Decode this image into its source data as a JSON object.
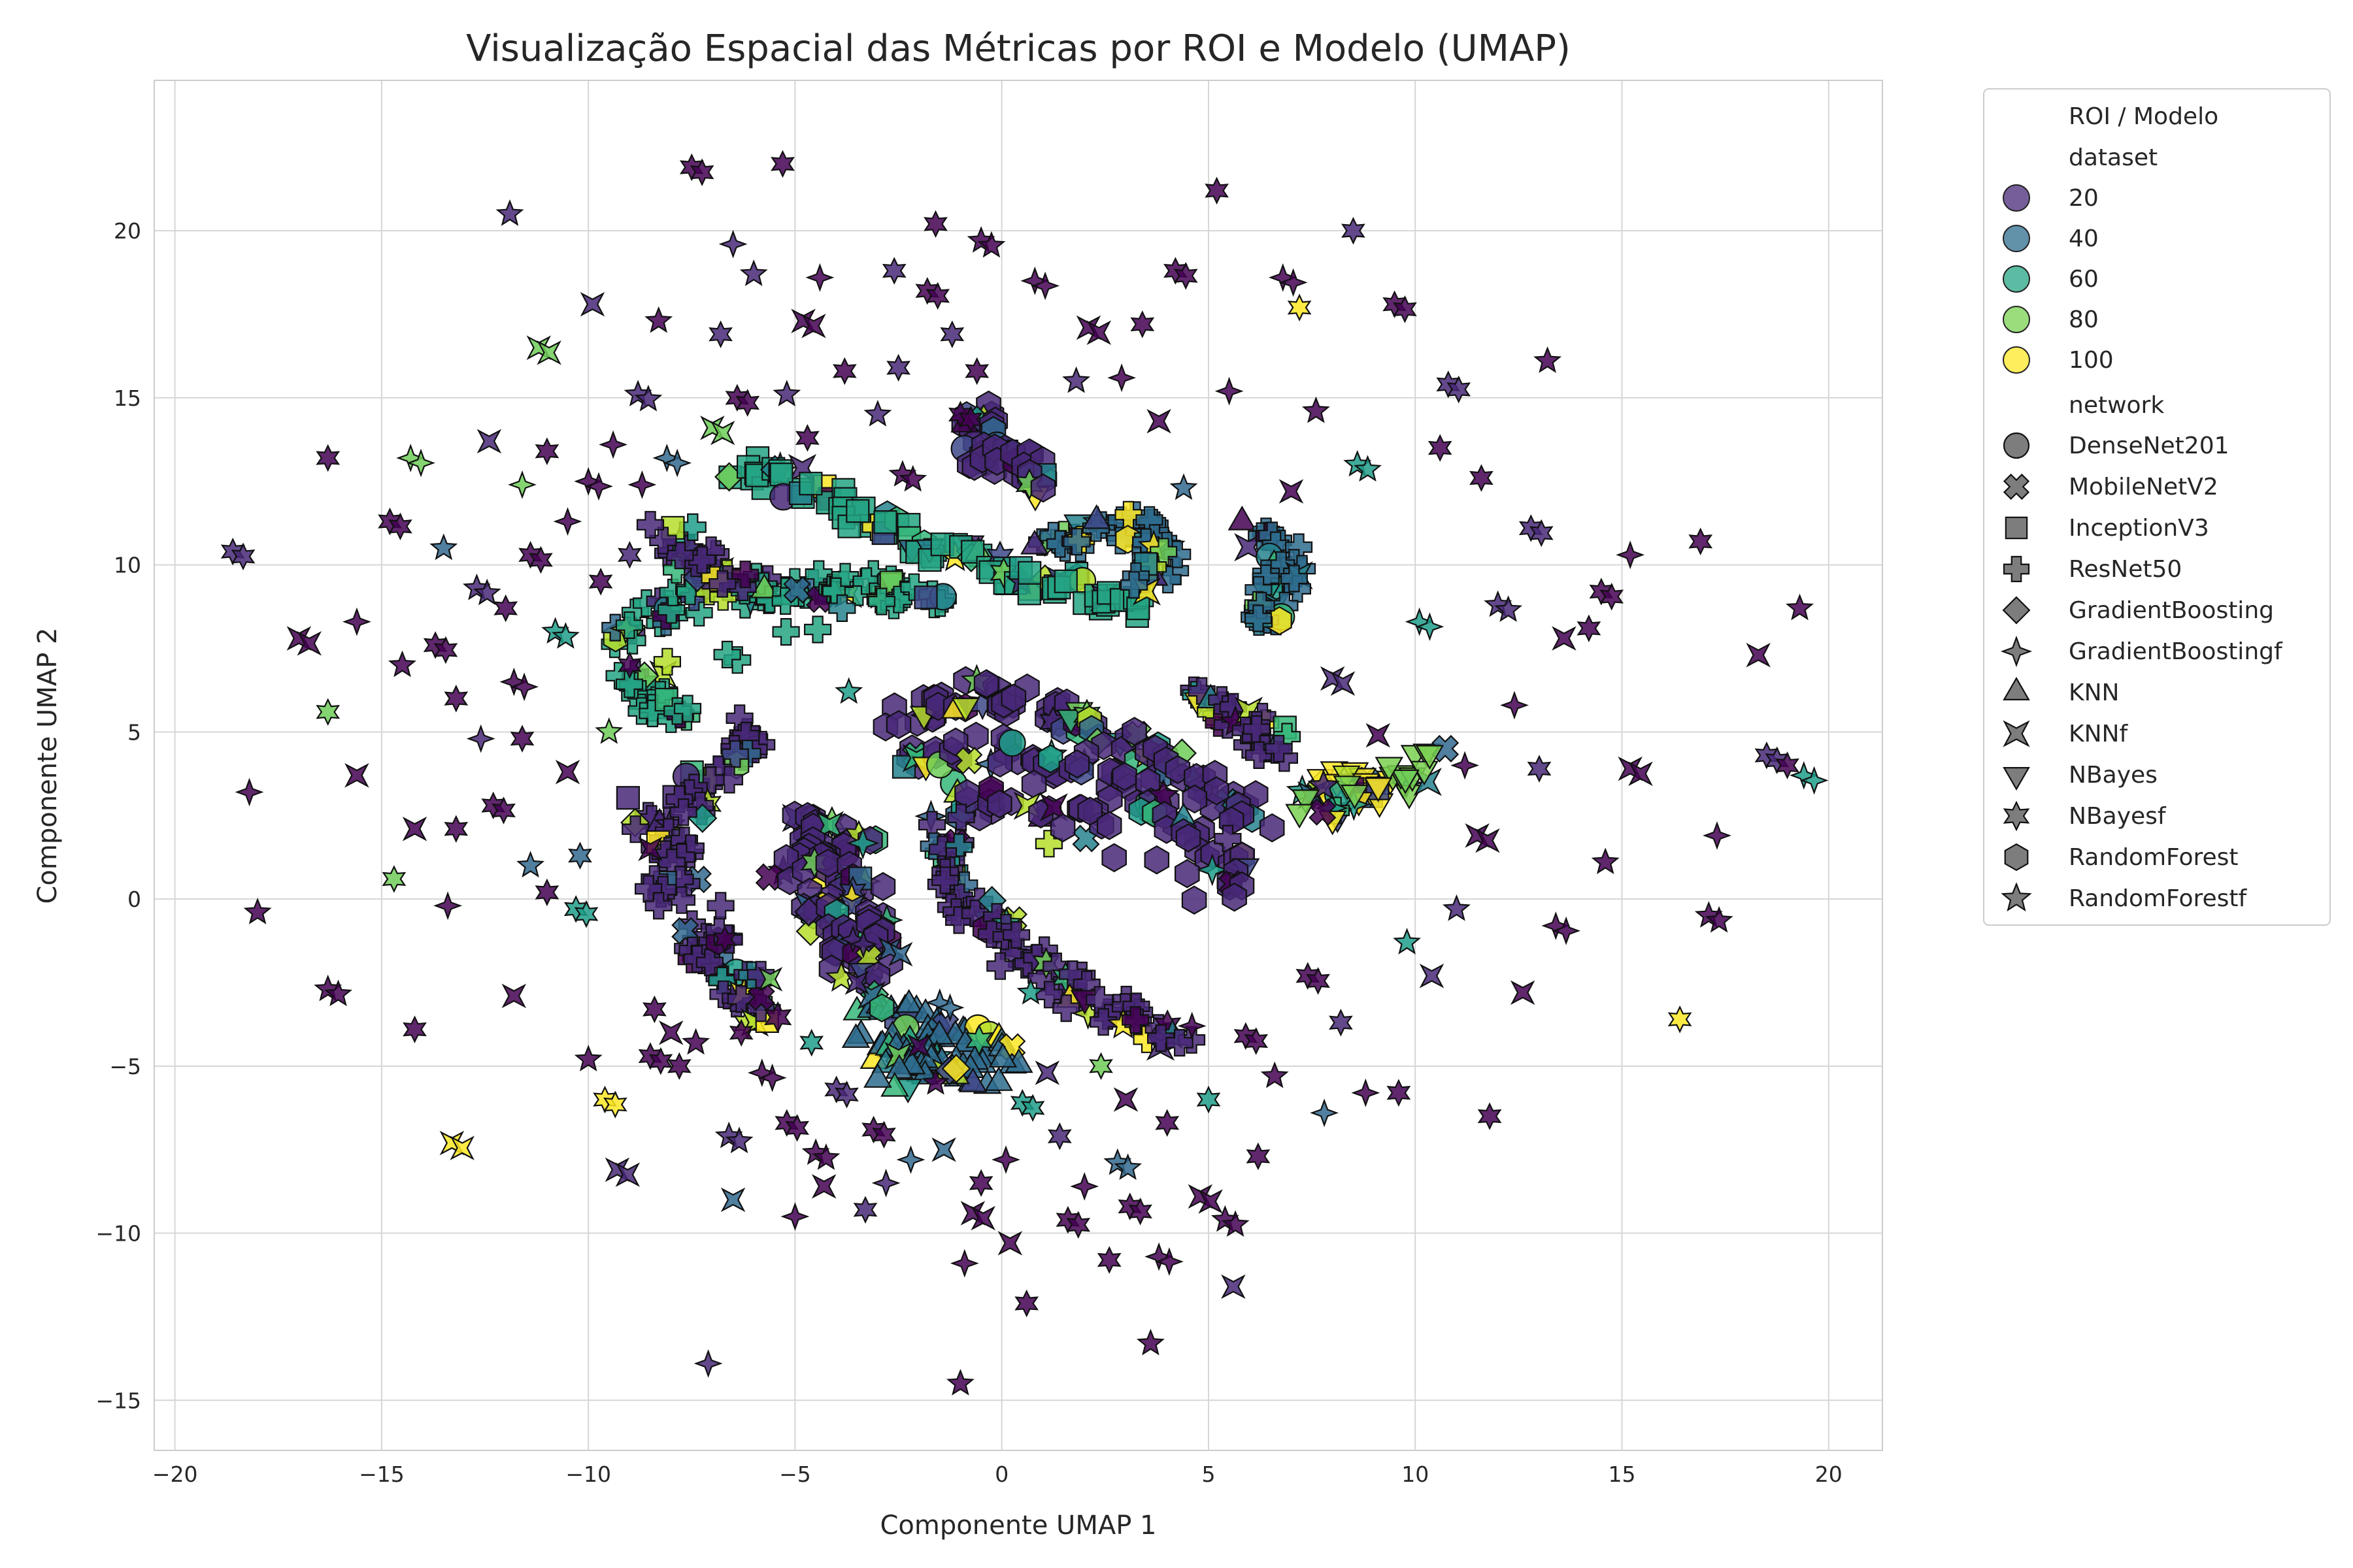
{
  "chart_data": {
    "type": "scatter",
    "title": "Visualização Espacial das Métricas por ROI e Modelo (UMAP)",
    "xlabel": "Componente UMAP 1",
    "ylabel": "Componente UMAP 2",
    "xlim": [
      -20.5,
      21.3
    ],
    "ylim": [
      -16.5,
      24.5
    ],
    "xticks": [
      -20,
      -15,
      -10,
      -5,
      0,
      5,
      10,
      15,
      20
    ],
    "yticks": [
      -15,
      -10,
      -5,
      0,
      5,
      10,
      15,
      20
    ],
    "xtick_labels": [
      "−20",
      "−15",
      "−10",
      "−5",
      "0",
      "5",
      "10",
      "15",
      "20"
    ],
    "ytick_labels": [
      "−15",
      "−10",
      "−5",
      "0",
      "5",
      "10",
      "15",
      "20"
    ],
    "grid": true,
    "legend": {
      "title": "ROI / Modelo",
      "placement": "outside-right",
      "hue_title": "dataset",
      "hue_entries": [
        {
          "label": "20",
          "color": "#482878"
        },
        {
          "label": "40",
          "color": "#2e6c8e"
        },
        {
          "label": "60",
          "color": "#25a584"
        },
        {
          "label": "80",
          "color": "#7ad151"
        },
        {
          "label": "100",
          "color": "#fde725"
        }
      ],
      "style_title": "network",
      "style_entries": [
        {
          "label": "DenseNet201",
          "marker": "circle"
        },
        {
          "label": "MobileNetV2",
          "marker": "x"
        },
        {
          "label": "InceptionV3",
          "marker": "square"
        },
        {
          "label": "ResNet50",
          "marker": "plus"
        },
        {
          "label": "GradientBoosting",
          "marker": "diamond"
        },
        {
          "label": "GradientBoostingf",
          "marker": "star4"
        },
        {
          "label": "KNN",
          "marker": "triangle-up"
        },
        {
          "label": "KNNf",
          "marker": "bowtie"
        },
        {
          "label": "NBayes",
          "marker": "triangle-down"
        },
        {
          "label": "NBayesf",
          "marker": "star6"
        },
        {
          "label": "RandomForest",
          "marker": "hexagon"
        },
        {
          "label": "RandomForestf",
          "marker": "star5"
        }
      ]
    },
    "colormap": [
      "#440154",
      "#482878",
      "#3e4989",
      "#31688e",
      "#26828e",
      "#1f9e89",
      "#35b779",
      "#6ece58",
      "#b5de2b",
      "#fde725"
    ],
    "clusters": [
      {
        "points": [
          [
            -9.5,
            7.8
          ],
          [
            -8.5,
            8.5
          ],
          [
            -7.5,
            9.0
          ],
          [
            -6.5,
            9.2
          ],
          [
            -5.5,
            9.2
          ],
          [
            -4.5,
            9.3
          ],
          [
            -3.5,
            9.3
          ],
          [
            -2.5,
            9.2
          ],
          [
            -1.5,
            9.0
          ],
          [
            -9.3,
            6.6
          ],
          [
            -8.4,
            6.0
          ],
          [
            -7.6,
            5.7
          ]
        ],
        "marker": "plus",
        "hue": 60
      },
      {
        "points": [
          [
            -6.5,
            13.0
          ],
          [
            -5.5,
            12.6
          ],
          [
            -4.5,
            12.2
          ],
          [
            -3.5,
            11.6
          ],
          [
            -2.5,
            11.0
          ],
          [
            -1.5,
            10.4
          ],
          [
            -0.5,
            10.0
          ],
          [
            0.5,
            9.6
          ],
          [
            1.5,
            9.4
          ],
          [
            2.5,
            9.0
          ],
          [
            3.3,
            8.7
          ]
        ],
        "marker": "square",
        "hue": 60
      },
      {
        "points": [
          [
            1.0,
            10.6
          ],
          [
            2.0,
            11.1
          ],
          [
            3.0,
            11.2
          ],
          [
            3.8,
            10.9
          ],
          [
            3.9,
            10.1
          ],
          [
            3.2,
            9.4
          ]
        ],
        "marker": "plus",
        "hue": 40
      },
      {
        "points": [
          [
            6.2,
            11.0
          ],
          [
            6.8,
            10.3
          ],
          [
            6.9,
            9.5
          ],
          [
            6.6,
            8.8
          ],
          [
            6.2,
            8.4
          ]
        ],
        "marker": "plus",
        "hue": 40
      },
      {
        "points": [
          [
            -0.5,
            14.6
          ],
          [
            -0.6,
            13.8
          ],
          [
            -0.3,
            13.2
          ],
          [
            0.5,
            13.0
          ],
          [
            1.0,
            12.3
          ]
        ],
        "marker": "hexagon",
        "hue": 20
      },
      {
        "points": [
          [
            -2.5,
            5.5
          ],
          [
            -1.5,
            6.0
          ],
          [
            -0.5,
            6.1
          ],
          [
            0.5,
            5.9
          ],
          [
            1.5,
            5.5
          ],
          [
            2.5,
            5.0
          ],
          [
            3.5,
            4.4
          ],
          [
            4.5,
            3.8
          ],
          [
            5.5,
            3.0
          ],
          [
            6.2,
            2.3
          ],
          [
            -2.6,
            4.0
          ],
          [
            -1.2,
            4.5
          ],
          [
            0.4,
            4.4
          ],
          [
            1.9,
            3.9
          ],
          [
            3.2,
            3.2
          ],
          [
            4.5,
            2.3
          ],
          [
            5.4,
            1.2
          ],
          [
            5.6,
            0.0
          ],
          [
            -1.5,
            2.9
          ],
          [
            0.5,
            3.0
          ],
          [
            2.6,
            2.2
          ]
        ],
        "marker": "hexagon",
        "hue": 20
      },
      {
        "points": [
          [
            -1.3,
            2.0
          ],
          [
            -1.4,
            1.0
          ],
          [
            -0.9,
            0.0
          ],
          [
            -0.2,
            -0.8
          ],
          [
            0.4,
            -1.6
          ],
          [
            1.3,
            -2.4
          ],
          [
            2.3,
            -3.1
          ],
          [
            3.3,
            -3.8
          ],
          [
            4.3,
            -4.3
          ]
        ],
        "marker": "plus",
        "hue": 20
      },
      {
        "points": [
          [
            -5.0,
            2.3
          ],
          [
            -4.2,
            2.0
          ],
          [
            -3.4,
            1.6
          ],
          [
            -5.3,
            1.0
          ],
          [
            -4.3,
            0.8
          ],
          [
            -3.3,
            0.4
          ],
          [
            -4.8,
            -0.5
          ],
          [
            -3.8,
            -0.7
          ],
          [
            -2.8,
            -1.0
          ],
          [
            -4.0,
            -2.0
          ],
          [
            -3.0,
            -2.3
          ]
        ],
        "marker": "hexagon",
        "hue": 20
      },
      {
        "points": [
          [
            -3.2,
            -3.0
          ],
          [
            -2.4,
            -3.5
          ],
          [
            -1.6,
            -3.8
          ],
          [
            -0.8,
            -4.3
          ],
          [
            0.0,
            -4.6
          ],
          [
            -3.3,
            -4.4
          ],
          [
            -2.4,
            -4.7
          ],
          [
            -1.4,
            -5.0
          ],
          [
            -0.5,
            -5.2
          ],
          [
            -3.0,
            -5.4
          ]
        ],
        "marker": "triangle-up",
        "hue": 40
      },
      {
        "points": [
          [
            -7.5,
            -1.0
          ],
          [
            -7.0,
            -2.0
          ],
          [
            -6.3,
            -2.8
          ],
          [
            -5.6,
            -3.5
          ],
          [
            -6.8,
            -0.2
          ]
        ],
        "marker": "plus",
        "hue": 20
      },
      {
        "points": [
          [
            -8.8,
            2.8
          ],
          [
            -8.2,
            1.8
          ],
          [
            -7.7,
            0.8
          ],
          [
            -8.3,
            -0.2
          ]
        ],
        "marker": "plus",
        "hue": 20
      },
      {
        "points": [
          [
            -5.8,
            5.2
          ],
          [
            -6.5,
            4.3
          ],
          [
            -7.2,
            3.4
          ],
          [
            -7.7,
            2.6
          ]
        ],
        "marker": "plus",
        "hue": 20
      },
      {
        "points": [
          [
            -8.0,
            10.5
          ],
          [
            -7.2,
            10.0
          ],
          [
            -6.5,
            9.6
          ],
          [
            -8.5,
            11.2
          ]
        ],
        "marker": "plus",
        "hue": 20
      },
      {
        "points": [
          [
            4.8,
            6.0
          ],
          [
            5.6,
            5.6
          ],
          [
            6.2,
            5.0
          ],
          [
            6.7,
            4.5
          ]
        ],
        "marker": "plus",
        "hue": 20
      },
      {
        "points": [
          [
            7.4,
            3.4
          ],
          [
            8.4,
            3.5
          ],
          [
            9.0,
            3.3
          ],
          [
            8.0,
            2.4
          ]
        ],
        "marker": "triangle-down",
        "hue": 100
      },
      {
        "points": [
          [
            9.5,
            3.3
          ],
          [
            10.3,
            4.2
          ],
          [
            7.2,
            2.6
          ]
        ],
        "marker": "triangle-down",
        "hue": 80
      }
    ],
    "scattered_points": [
      [
        -18.6,
        10.4
      ],
      [
        -18.0,
        -0.4
      ],
      [
        -18.2,
        3.2
      ],
      [
        -17.0,
        7.8
      ],
      [
        -16.3,
        13.2
      ],
      [
        -16.3,
        5.6
      ],
      [
        -16.3,
        -2.7
      ],
      [
        -15.6,
        8.3
      ],
      [
        -15.6,
        3.7
      ],
      [
        -14.8,
        11.3
      ],
      [
        -14.7,
        0.6
      ],
      [
        -14.5,
        7.0
      ],
      [
        -14.3,
        13.2
      ],
      [
        -14.2,
        2.1
      ],
      [
        -14.2,
        -3.9
      ],
      [
        -13.7,
        7.6
      ],
      [
        -13.5,
        10.5
      ],
      [
        -13.4,
        -0.2
      ],
      [
        -13.3,
        -7.3
      ],
      [
        -13.2,
        6.0
      ],
      [
        -13.2,
        2.1
      ],
      [
        -12.7,
        9.3
      ],
      [
        -12.6,
        4.8
      ],
      [
        -12.4,
        13.7
      ],
      [
        -12.3,
        2.8
      ],
      [
        -12.0,
        8.7
      ],
      [
        -11.9,
        20.5
      ],
      [
        -11.8,
        6.5
      ],
      [
        -11.8,
        -2.9
      ],
      [
        -11.6,
        4.8
      ],
      [
        -11.4,
        10.3
      ],
      [
        -11.4,
        1.0
      ],
      [
        -11.6,
        12.4
      ],
      [
        -11.2,
        16.5
      ],
      [
        -11.0,
        0.2
      ],
      [
        -11.0,
        13.4
      ],
      [
        -10.8,
        8.0
      ],
      [
        -10.5,
        11.3
      ],
      [
        -10.5,
        3.8
      ],
      [
        -10.3,
        -0.3
      ],
      [
        -10.2,
        1.3
      ],
      [
        -10.0,
        -4.8
      ],
      [
        -10.0,
        12.5
      ],
      [
        -9.9,
        17.8
      ],
      [
        -9.7,
        9.5
      ],
      [
        -9.6,
        -6.0
      ],
      [
        -9.5,
        5.0
      ],
      [
        -9.4,
        13.6
      ],
      [
        -9.3,
        -8.1
      ],
      [
        -9.0,
        10.3
      ],
      [
        -9.0,
        7.0
      ],
      [
        -8.8,
        15.1
      ],
      [
        -8.7,
        12.4
      ],
      [
        -8.5,
        1.5
      ],
      [
        -8.5,
        -4.7
      ],
      [
        -8.4,
        -3.3
      ],
      [
        -8.3,
        17.3
      ],
      [
        -8.1,
        13.2
      ],
      [
        -8.0,
        -4.0
      ],
      [
        -7.8,
        -5.0
      ],
      [
        -7.5,
        21.9
      ],
      [
        -7.4,
        -4.3
      ],
      [
        -7.1,
        -13.9
      ],
      [
        -7.0,
        14.1
      ],
      [
        -6.8,
        16.9
      ],
      [
        -6.7,
        -1.2
      ],
      [
        -6.6,
        -7.1
      ],
      [
        -6.5,
        19.6
      ],
      [
        -6.5,
        -9.0
      ],
      [
        -6.4,
        15.0
      ],
      [
        -6.3,
        -4.0
      ],
      [
        -6.0,
        18.7
      ],
      [
        -5.8,
        -5.2
      ],
      [
        -5.6,
        -2.4
      ],
      [
        -5.3,
        22.0
      ],
      [
        -5.2,
        -6.7
      ],
      [
        -5.2,
        15.1
      ],
      [
        -5.0,
        -9.5
      ],
      [
        -4.8,
        17.3
      ],
      [
        -4.7,
        13.8
      ],
      [
        -4.6,
        -4.3
      ],
      [
        -4.5,
        -7.6
      ],
      [
        -4.4,
        18.6
      ],
      [
        -4.3,
        -8.6
      ],
      [
        -4.0,
        -5.7
      ],
      [
        -3.8,
        15.8
      ],
      [
        -3.7,
        6.2
      ],
      [
        -3.6,
        -1.2
      ],
      [
        -3.5,
        -2.5
      ],
      [
        -3.3,
        -9.3
      ],
      [
        -3.1,
        -6.9
      ],
      [
        -3.0,
        14.5
      ],
      [
        -2.8,
        -8.5
      ],
      [
        -2.7,
        -1.5
      ],
      [
        -2.6,
        18.8
      ],
      [
        -2.5,
        15.9
      ],
      [
        -2.4,
        12.7
      ],
      [
        -2.2,
        -7.8
      ],
      [
        -2.0,
        -4.4
      ],
      [
        -1.8,
        18.2
      ],
      [
        -1.6,
        20.2
      ],
      [
        -1.6,
        -5.5
      ],
      [
        -1.5,
        -3.1
      ],
      [
        -1.4,
        -7.5
      ],
      [
        -1.2,
        16.9
      ],
      [
        -1.0,
        14.5
      ],
      [
        -1.0,
        -14.5
      ],
      [
        -0.9,
        -10.9
      ],
      [
        -0.7,
        -9.4
      ],
      [
        -0.5,
        -8.5
      ],
      [
        -0.6,
        15.8
      ],
      [
        -0.5,
        19.7
      ],
      [
        0.1,
        -7.8
      ],
      [
        0.2,
        -10.3
      ],
      [
        0.5,
        -6.1
      ],
      [
        0.6,
        -12.1
      ],
      [
        0.7,
        -2.8
      ],
      [
        0.8,
        18.5
      ],
      [
        1.1,
        -5.2
      ],
      [
        1.4,
        -7.1
      ],
      [
        1.6,
        -9.6
      ],
      [
        1.8,
        15.5
      ],
      [
        2.0,
        -8.6
      ],
      [
        2.1,
        17.1
      ],
      [
        2.4,
        -5.0
      ],
      [
        2.6,
        -10.8
      ],
      [
        2.8,
        -7.9
      ],
      [
        2.9,
        15.6
      ],
      [
        3.0,
        -6.0
      ],
      [
        3.1,
        -9.2
      ],
      [
        3.4,
        17.2
      ],
      [
        3.6,
        -13.3
      ],
      [
        3.8,
        -10.7
      ],
      [
        3.8,
        14.3
      ],
      [
        4.0,
        -6.7
      ],
      [
        4.2,
        18.8
      ],
      [
        4.4,
        12.3
      ],
      [
        4.6,
        -3.8
      ],
      [
        4.8,
        -8.9
      ],
      [
        5.0,
        -6.0
      ],
      [
        5.2,
        21.2
      ],
      [
        5.4,
        -9.6
      ],
      [
        5.5,
        15.2
      ],
      [
        5.6,
        -11.6
      ],
      [
        5.9,
        -4.1
      ],
      [
        6.2,
        -7.7
      ],
      [
        6.6,
        -5.3
      ],
      [
        6.8,
        18.6
      ],
      [
        7.0,
        12.2
      ],
      [
        7.2,
        17.7
      ],
      [
        7.4,
        -2.3
      ],
      [
        7.6,
        14.6
      ],
      [
        7.8,
        -6.4
      ],
      [
        8.0,
        6.6
      ],
      [
        8.2,
        -3.7
      ],
      [
        8.5,
        20.0
      ],
      [
        8.6,
        13.0
      ],
      [
        8.8,
        -5.8
      ],
      [
        9.1,
        4.9
      ],
      [
        9.5,
        17.8
      ],
      [
        9.6,
        -5.8
      ],
      [
        9.8,
        -1.3
      ],
      [
        10.1,
        8.3
      ],
      [
        10.4,
        -2.3
      ],
      [
        10.6,
        13.5
      ],
      [
        10.8,
        15.4
      ],
      [
        11.0,
        -0.3
      ],
      [
        11.2,
        4.0
      ],
      [
        11.5,
        1.9
      ],
      [
        11.6,
        12.6
      ],
      [
        11.8,
        -6.5
      ],
      [
        12.0,
        8.8
      ],
      [
        12.4,
        5.8
      ],
      [
        12.6,
        -2.8
      ],
      [
        12.8,
        11.1
      ],
      [
        13.0,
        3.9
      ],
      [
        13.2,
        16.1
      ],
      [
        13.4,
        -0.8
      ],
      [
        13.6,
        7.8
      ],
      [
        14.2,
        8.1
      ],
      [
        14.5,
        9.2
      ],
      [
        14.6,
        1.1
      ],
      [
        15.2,
        10.3
      ],
      [
        15.2,
        3.9
      ],
      [
        16.4,
        -3.6
      ],
      [
        16.9,
        10.7
      ],
      [
        17.1,
        -0.5
      ],
      [
        17.3,
        1.9
      ],
      [
        18.3,
        7.3
      ],
      [
        18.5,
        4.3
      ],
      [
        19.0,
        4.0
      ],
      [
        19.3,
        8.7
      ],
      [
        19.4,
        3.7
      ]
    ]
  }
}
